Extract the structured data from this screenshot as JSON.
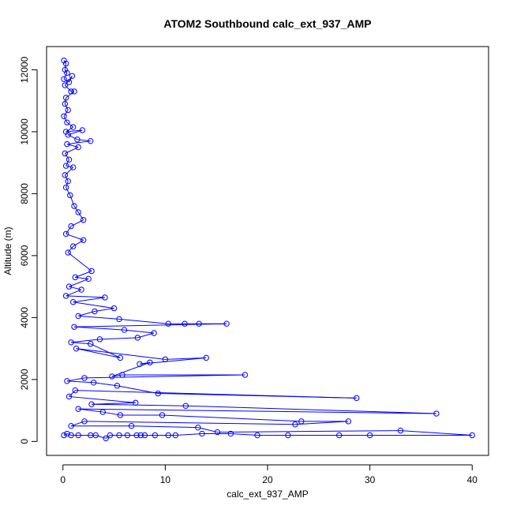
{
  "chart_data": {
    "type": "scatter",
    "title": "ATOM2 Southbound calc_ext_937_AMP",
    "xlabel": "calc_ext_937_AMP",
    "ylabel": "Altitude (m)",
    "xlim": [
      -1.6,
      41.6
    ],
    "ylim": [
      -450,
      12750
    ],
    "x_ticks": [
      0,
      10,
      20,
      30,
      40
    ],
    "y_ticks": [
      0,
      2000,
      4000,
      6000,
      8000,
      10000,
      12000
    ],
    "grid": false,
    "legend": "none",
    "marker": "open-circle",
    "connected": true,
    "color": "#0000ff",
    "series": [
      {
        "values": [
          [
            0.1,
            12300
          ],
          [
            0.3,
            12200
          ],
          [
            0.2,
            12000
          ],
          [
            0.4,
            11900
          ],
          [
            0.1,
            11700
          ],
          [
            0.6,
            11600
          ],
          [
            0.9,
            11800
          ],
          [
            0.2,
            11500
          ],
          [
            0.8,
            11300
          ],
          [
            1.1,
            11300
          ],
          [
            0.3,
            11100
          ],
          [
            0.2,
            10900
          ],
          [
            0.5,
            10700
          ],
          [
            0.1,
            10500
          ],
          [
            0.4,
            10300
          ],
          [
            1.0,
            10150
          ],
          [
            0.3,
            10000
          ],
          [
            1.9,
            10050
          ],
          [
            0.5,
            9900
          ],
          [
            1.4,
            9750
          ],
          [
            2.7,
            9700
          ],
          [
            0.4,
            9600
          ],
          [
            1.5,
            9500
          ],
          [
            0.2,
            9300
          ],
          [
            0.6,
            9100
          ],
          [
            0.3,
            8900
          ],
          [
            1.0,
            8850
          ],
          [
            0.2,
            8600
          ],
          [
            0.5,
            8400
          ],
          [
            0.3,
            8200
          ],
          [
            0.7,
            7950
          ],
          [
            1.1,
            7600
          ],
          [
            1.5,
            7400
          ],
          [
            2.0,
            7150
          ],
          [
            0.8,
            6950
          ],
          [
            0.3,
            6700
          ],
          [
            2.0,
            6500
          ],
          [
            1.0,
            6300
          ],
          [
            0.5,
            6100
          ],
          [
            2.8,
            5500
          ],
          [
            1.2,
            5300
          ],
          [
            2.5,
            5250
          ],
          [
            0.6,
            5000
          ],
          [
            1.8,
            4900
          ],
          [
            0.3,
            4700
          ],
          [
            4.1,
            4650
          ],
          [
            1.0,
            4500
          ],
          [
            5.0,
            4300
          ],
          [
            3.1,
            4200
          ],
          [
            1.5,
            4050
          ],
          [
            5.5,
            3950
          ],
          [
            10.3,
            3800
          ],
          [
            11.9,
            3800
          ],
          [
            13.3,
            3800
          ],
          [
            16.0,
            3800
          ],
          [
            1.1,
            3700
          ],
          [
            6.0,
            3600
          ],
          [
            8.9,
            3500
          ],
          [
            7.3,
            3350
          ],
          [
            3.6,
            3300
          ],
          [
            0.8,
            3200
          ],
          [
            2.7,
            3150
          ],
          [
            5.6,
            2700
          ],
          [
            1.3,
            3000
          ],
          [
            10.0,
            2650
          ],
          [
            14.0,
            2700
          ],
          [
            7.5,
            2500
          ],
          [
            8.5,
            2550
          ],
          [
            4.8,
            2100
          ],
          [
            5.8,
            2150
          ],
          [
            17.8,
            2150
          ],
          [
            2.1,
            2050
          ],
          [
            0.4,
            1950
          ],
          [
            3.0,
            1900
          ],
          [
            5.3,
            1800
          ],
          [
            9.3,
            1550
          ],
          [
            28.7,
            1400
          ],
          [
            1.2,
            1650
          ],
          [
            0.6,
            1450
          ],
          [
            7.1,
            1250
          ],
          [
            2.8,
            1200
          ],
          [
            12.0,
            1150
          ],
          [
            36.5,
            900
          ],
          [
            1.5,
            1050
          ],
          [
            3.9,
            950
          ],
          [
            5.6,
            850
          ],
          [
            9.7,
            850
          ],
          [
            23.3,
            650
          ],
          [
            27.9,
            650
          ],
          [
            22.7,
            550
          ],
          [
            2.1,
            650
          ],
          [
            0.8,
            500
          ],
          [
            6.7,
            500
          ],
          [
            13.2,
            450
          ],
          [
            15.1,
            300
          ],
          [
            33.0,
            350
          ],
          [
            40.0,
            200
          ],
          [
            30.0,
            200
          ],
          [
            27.0,
            200
          ],
          [
            22.0,
            200
          ],
          [
            19.0,
            200
          ],
          [
            16.4,
            250
          ],
          [
            13.6,
            250
          ],
          [
            11.0,
            200
          ],
          [
            10.3,
            200
          ],
          [
            9.0,
            200
          ],
          [
            8.0,
            200
          ],
          [
            7.6,
            200
          ],
          [
            7.2,
            200
          ],
          [
            6.3,
            200
          ],
          [
            5.5,
            200
          ],
          [
            4.6,
            200
          ],
          [
            4.2,
            100
          ],
          [
            3.2,
            200
          ],
          [
            2.7,
            200
          ],
          [
            1.5,
            200
          ],
          [
            0.8,
            200
          ],
          [
            0.4,
            250
          ],
          [
            0.1,
            200
          ]
        ]
      }
    ]
  }
}
